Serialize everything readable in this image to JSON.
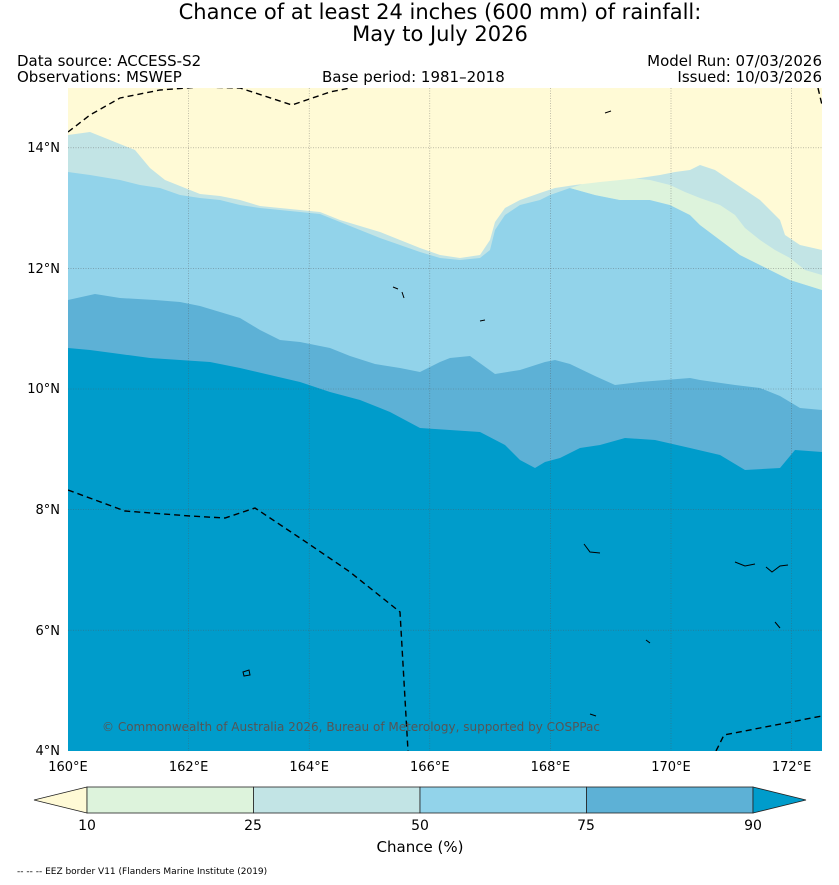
{
  "title": {
    "line1": "Chance of at least 24 inches (600  mm) of rainfall:",
    "line2": "May to July 2026"
  },
  "header": {
    "data_source": "Data source: ACCESS-S2",
    "observations": "Observations: MSWEP",
    "base_period": "Base period: 1981–2018",
    "model_run": "Model Run: 07/03/2026",
    "issued": "Issued: 10/03/2026"
  },
  "map": {
    "lon_labels": [
      "160°E",
      "162°E",
      "164°E",
      "166°E",
      "168°E",
      "170°E",
      "172°E"
    ],
    "lat_labels": [
      "14°N",
      "12°N",
      "10°N",
      "8°N",
      "6°N",
      "4°N"
    ],
    "lon_range": [
      160,
      172.5
    ],
    "lat_range": [
      4,
      15
    ],
    "copyright": "© Commonwealth of Australia 2026, Bureau of Meterology, supported by COSPPac"
  },
  "legend": {
    "ticks": [
      "10",
      "25",
      "50",
      "75",
      "90"
    ],
    "label": "Chance (%)",
    "colors": [
      "#fffad6",
      "#ddf3dc",
      "#c2e4e5",
      "#92d3ea",
      "#5db1d6",
      "#009ccb"
    ]
  },
  "footer": {
    "eez_note": "-- -- -- EEZ border V11 (Flanders Marine Institute (2019)"
  }
}
